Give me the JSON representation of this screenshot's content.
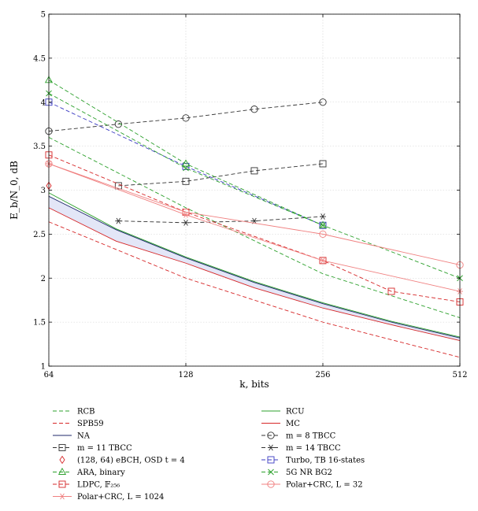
{
  "chart_data": {
    "type": "line",
    "xlabel": "k, bits",
    "ylabel": "E_b/N_0, dB",
    "x_scale": "log2",
    "xlim": [
      64,
      512
    ],
    "ylim": [
      1,
      5
    ],
    "x_ticks": [
      64,
      128,
      256,
      512
    ],
    "y_ticks": [
      1,
      1.5,
      2,
      2.5,
      3,
      3.5,
      4,
      4.5,
      5
    ],
    "x_tick_labels": [
      "64",
      "128",
      "256",
      "512"
    ],
    "y_tick_labels": [
      "1",
      "1.5",
      "2",
      "2.5",
      "3",
      "3.5",
      "4",
      "4.5",
      "5"
    ],
    "grid": true,
    "legend_position": "below",
    "shaded_region": {
      "between": [
        "NA",
        "MC"
      ],
      "color": "#e3e6f7"
    },
    "series": [
      {
        "name": "RCB",
        "color": "#2ca02c",
        "dash": "5,3",
        "marker": "none",
        "x": [
          64,
          128,
          256,
          512
        ],
        "y": [
          3.6,
          2.8,
          2.05,
          1.55
        ]
      },
      {
        "name": "RCU",
        "color": "#2ca02c",
        "dash": "",
        "marker": "none",
        "x": [
          64,
          90,
          128,
          181,
          256,
          362,
          512
        ],
        "y": [
          2.97,
          2.56,
          2.24,
          1.96,
          1.72,
          1.51,
          1.33
        ]
      },
      {
        "name": "SPB59",
        "color": "#d62728",
        "dash": "5,3",
        "marker": "none",
        "x": [
          64,
          128,
          256,
          512
        ],
        "y": [
          2.64,
          2.0,
          1.5,
          1.1
        ]
      },
      {
        "name": "MC",
        "color": "#d62728",
        "dash": "",
        "marker": "none",
        "x": [
          64,
          90,
          128,
          181,
          256,
          362,
          512
        ],
        "y": [
          2.8,
          2.42,
          2.17,
          1.89,
          1.66,
          1.47,
          1.29
        ]
      },
      {
        "name": "NA",
        "color": "#1f2a6b",
        "dash": "",
        "marker": "none",
        "x": [
          64,
          90,
          128,
          181,
          256,
          362,
          512
        ],
        "y": [
          2.93,
          2.55,
          2.23,
          1.95,
          1.71,
          1.5,
          1.32
        ]
      },
      {
        "name": "m = 8 TBCC",
        "color": "#333333",
        "dash": "5,3",
        "marker": "circle",
        "x": [
          64,
          91,
          128,
          181,
          256
        ],
        "y": [
          3.67,
          3.75,
          3.82,
          3.92,
          4.0
        ]
      },
      {
        "name": "m = 11 TBCC",
        "color": "#333333",
        "dash": "5,3",
        "marker": "square",
        "x": [
          91,
          128,
          181,
          256
        ],
        "y": [
          3.05,
          3.1,
          3.22,
          3.3
        ]
      },
      {
        "name": "m = 14 TBCC",
        "color": "#333333",
        "dash": "5,3",
        "marker": "star",
        "x": [
          91,
          128,
          181,
          256
        ],
        "y": [
          2.65,
          2.63,
          2.65,
          2.7
        ]
      },
      {
        "name": "(128, 64) eBCH, OSD t = 4",
        "color": "#d62728",
        "dash": "",
        "marker": "diamond",
        "x": [
          64
        ],
        "y": [
          3.05
        ]
      },
      {
        "name": "Turbo, TB 16-states",
        "color": "#3b3bc2",
        "dash": "5,3",
        "marker": "square",
        "x": [
          64,
          128,
          256
        ],
        "y": [
          4.0,
          3.27,
          2.6
        ]
      },
      {
        "name": "ARA, binary",
        "color": "#2ca02c",
        "dash": "5,3",
        "marker": "triangle",
        "x": [
          64,
          128,
          256
        ],
        "y": [
          4.25,
          3.3,
          2.6
        ]
      },
      {
        "name": "5G NR BG2",
        "color": "#2ca02c",
        "dash": "5,3",
        "marker": "x",
        "x": [
          64,
          128,
          256,
          512
        ],
        "y": [
          4.1,
          3.25,
          2.6,
          2.0
        ]
      },
      {
        "name": "LDPC, 𝔽₂₅₆",
        "color": "#d62728",
        "dash": "5,3",
        "marker": "square",
        "x": [
          64,
          128,
          256,
          362,
          512
        ],
        "y": [
          3.4,
          2.75,
          2.2,
          1.85,
          1.73
        ]
      },
      {
        "name": "Polar+CRC, L = 32",
        "color": "#f08080",
        "dash": "",
        "marker": "circle",
        "x": [
          64,
          128,
          256,
          512
        ],
        "y": [
          3.3,
          2.75,
          2.5,
          2.15
        ]
      },
      {
        "name": "Polar+CRC, L = 1024",
        "color": "#f08080",
        "dash": "",
        "marker": "star",
        "x": [
          64,
          128,
          256,
          512
        ],
        "y": [
          3.3,
          2.72,
          2.2,
          1.85
        ]
      }
    ]
  }
}
